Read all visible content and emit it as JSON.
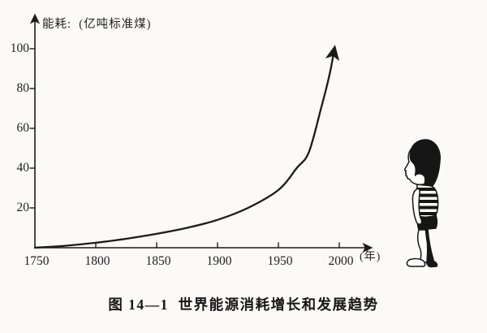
{
  "chart_data": {
    "type": "line",
    "title": "图 14—1  世界能源消耗增长和发展趋势",
    "ylabel": "能耗:  (亿吨标准煤)",
    "xlabel": "(年)",
    "x": [
      1750,
      1775,
      1800,
      1825,
      1850,
      1875,
      1900,
      1925,
      1950,
      1965,
      1975,
      1985,
      1992,
      1996
    ],
    "values": [
      0,
      1,
      2.5,
      4.5,
      7,
      10,
      14,
      20,
      29,
      40,
      48,
      70,
      87,
      100
    ],
    "xticks": [
      1750,
      1800,
      1850,
      1900,
      1950,
      2000
    ],
    "yticks": [
      20,
      40,
      60,
      80,
      100
    ],
    "xlim": [
      1750,
      2025
    ],
    "ylim": [
      0,
      110
    ],
    "grid": false,
    "legend_position": "none",
    "line_color": "#1b1b1b",
    "series_name": "世界能源消耗",
    "annotations": [
      "曲线末端箭头表示持续上升趋势"
    ]
  },
  "illustration": {
    "name": "child-looking-up",
    "description": "短发小孩侧面剪影，条纹上衣"
  }
}
